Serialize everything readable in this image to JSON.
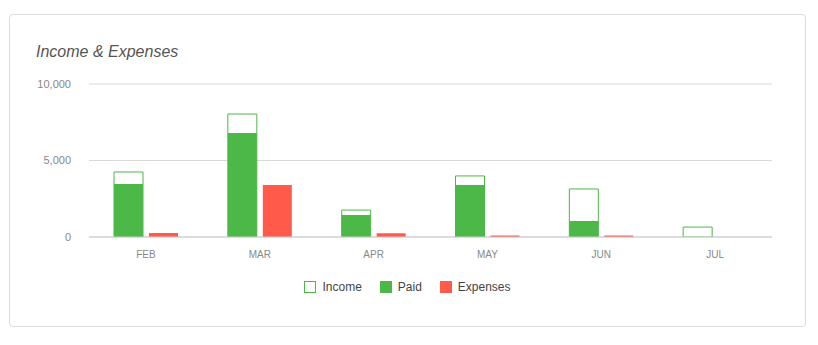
{
  "chart_data": {
    "type": "bar",
    "title": "Income & Expenses",
    "categories": [
      "FEB",
      "MAR",
      "APR",
      "MAY",
      "JUN",
      "JUL"
    ],
    "series": [
      {
        "name": "Income",
        "color": "#4cb848",
        "marker": "outline",
        "values": [
          4250,
          8040,
          1760,
          3990,
          3140,
          650
        ]
      },
      {
        "name": "Paid",
        "color": "#4cb848",
        "marker": "filled",
        "values": [
          3460,
          6800,
          1440,
          3400,
          1050,
          0
        ]
      },
      {
        "name": "Expenses",
        "color": "#ff5a4a",
        "marker": "filled",
        "values": [
          260,
          3400,
          250,
          100,
          100,
          0
        ]
      }
    ],
    "ylim": [
      0,
      10000
    ],
    "yticks": [
      0,
      {
        "value": 5000,
        "label": "5,000"
      },
      {
        "value": 10000,
        "label": "10,000"
      }
    ],
    "grid": true,
    "legend": "bottom"
  }
}
